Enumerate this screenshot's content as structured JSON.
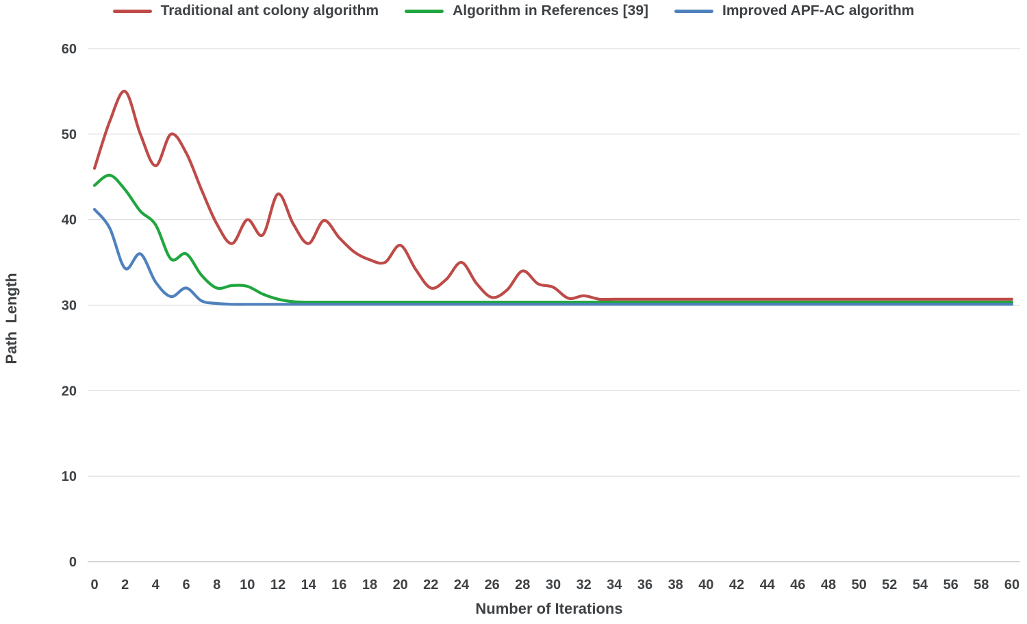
{
  "figure": {
    "background_color": "#FFFFFF",
    "text_color": "#3F4245",
    "gridline_color": "#DDDDDD",
    "axisline_color": "#C9C9C9"
  },
  "chart_data": {
    "type": "line",
    "title": "",
    "xlabel": "Number of Iterations",
    "ylabel": "Path  Length",
    "xlim": [
      0,
      60
    ],
    "ylim": [
      0,
      60
    ],
    "x_ticks": [
      0,
      2,
      4,
      6,
      8,
      10,
      12,
      14,
      16,
      18,
      20,
      22,
      24,
      26,
      28,
      30,
      32,
      34,
      36,
      38,
      40,
      42,
      44,
      46,
      48,
      50,
      52,
      54,
      56,
      58,
      60
    ],
    "y_ticks": [
      0,
      10,
      20,
      30,
      40,
      50,
      60
    ],
    "grid": "horizontal-only",
    "legend_position": "top-center",
    "line_smoothing": true,
    "series": [
      {
        "name": "Traditional ant colony algorithm",
        "color": "#BE4B48",
        "x_start": 0,
        "x_step": 1,
        "values": [
          46,
          51.5,
          55,
          50,
          46.3,
          50,
          47.8,
          43.5,
          39.5,
          37.2,
          40,
          38.2,
          43,
          39.5,
          37.2,
          39.9,
          37.9,
          36.2,
          35.3,
          35,
          37,
          34.2,
          32,
          33,
          35,
          32.5,
          30.9,
          31.8,
          34,
          32.5,
          32.1,
          30.8,
          31.1,
          30.7,
          30.7,
          30.7,
          30.7,
          30.7,
          30.7,
          30.7,
          30.7,
          30.7,
          30.7,
          30.7,
          30.7,
          30.7,
          30.7,
          30.7,
          30.7,
          30.7,
          30.7,
          30.7,
          30.7,
          30.7,
          30.7,
          30.7,
          30.7,
          30.7,
          30.7,
          30.7,
          30.7
        ]
      },
      {
        "name": "Algorithm in References [39]",
        "color": "#21A63F",
        "x_start": 0,
        "x_step": 1,
        "values": [
          44,
          45.2,
          43.5,
          41,
          39.4,
          35.4,
          36,
          33.5,
          32,
          32.3,
          32.2,
          31.3,
          30.7,
          30.4,
          30.35,
          30.35,
          30.35,
          30.35,
          30.35,
          30.35,
          30.35,
          30.35,
          30.35,
          30.35,
          30.35,
          30.35,
          30.35,
          30.35,
          30.35,
          30.35,
          30.35,
          30.35,
          30.35,
          30.35,
          30.35,
          30.35,
          30.35,
          30.35,
          30.35,
          30.35,
          30.35,
          30.35,
          30.35,
          30.35,
          30.35,
          30.35,
          30.35,
          30.35,
          30.35,
          30.35,
          30.35,
          30.35,
          30.35,
          30.35,
          30.35,
          30.35,
          30.35,
          30.35,
          30.35,
          30.35,
          30.35
        ]
      },
      {
        "name": "Improved APF-AC algorithm",
        "color": "#4F81BD",
        "x_start": 0,
        "x_step": 1,
        "values": [
          41.2,
          39,
          34.3,
          36,
          32.7,
          31,
          32,
          30.5,
          30.2,
          30.1,
          30.1,
          30.1,
          30.1,
          30.1,
          30.1,
          30.1,
          30.1,
          30.1,
          30.1,
          30.1,
          30.1,
          30.1,
          30.1,
          30.1,
          30.1,
          30.1,
          30.1,
          30.1,
          30.1,
          30.1,
          30.1,
          30.1,
          30.1,
          30.1,
          30.1,
          30.1,
          30.1,
          30.1,
          30.1,
          30.1,
          30.1,
          30.1,
          30.1,
          30.1,
          30.1,
          30.1,
          30.1,
          30.1,
          30.1,
          30.1,
          30.1,
          30.1,
          30.1,
          30.1,
          30.1,
          30.1,
          30.1,
          30.1,
          30.1,
          30.1,
          30.1
        ]
      }
    ]
  }
}
